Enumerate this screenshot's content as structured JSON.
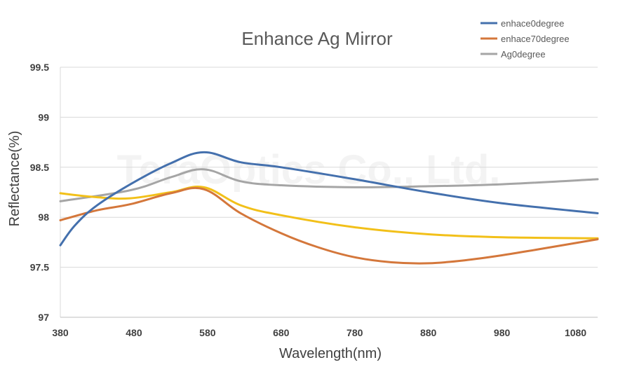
{
  "chart_data": {
    "type": "line",
    "title": "Enhance Ag Mirror",
    "xlabel": "Wavelength(nm)",
    "ylabel": "Reflectance(%)",
    "xlim": [
      380,
      1110
    ],
    "ylim": [
      97,
      99.5
    ],
    "x_ticks": [
      380,
      480,
      580,
      680,
      780,
      880,
      980,
      1080
    ],
    "y_ticks": [
      97,
      97.5,
      98,
      98.5,
      99,
      99.5
    ],
    "grid": true,
    "legend_position": "top-right",
    "watermark": "TeraOptics Co., Ltd.",
    "series": [
      {
        "name": "enhace0degree",
        "color": "#4470AD",
        "x": [
          380,
          400,
          430,
          480,
          530,
          575,
          625,
          680,
          780,
          880,
          980,
          1110
        ],
        "y": [
          97.72,
          97.92,
          98.12,
          98.35,
          98.54,
          98.65,
          98.55,
          98.5,
          98.38,
          98.25,
          98.14,
          98.04
        ]
      },
      {
        "name": "enhace70degree",
        "color": "#D4773B",
        "x": [
          380,
          430,
          475,
          530,
          575,
          625,
          680,
          730,
          780,
          830,
          880,
          930,
          980,
          1030,
          1110
        ],
        "y": [
          97.97,
          98.07,
          98.13,
          98.24,
          98.28,
          98.04,
          97.84,
          97.7,
          97.6,
          97.55,
          97.54,
          97.57,
          97.62,
          97.68,
          97.78
        ]
      },
      {
        "name": "Ag0degree",
        "color": "#A5A5A5",
        "x": [
          380,
          475,
          530,
          575,
          625,
          680,
          780,
          880,
          980,
          1110
        ],
        "y": [
          98.16,
          98.27,
          98.4,
          98.48,
          98.36,
          98.32,
          98.3,
          98.31,
          98.33,
          98.38
        ]
      },
      {
        "name": "",
        "color": "#F2C019",
        "x": [
          380,
          430,
          475,
          530,
          575,
          625,
          680,
          780,
          880,
          980,
          1110
        ],
        "y": [
          98.24,
          98.2,
          98.19,
          98.25,
          98.3,
          98.12,
          98.02,
          97.9,
          97.83,
          97.8,
          97.79
        ]
      }
    ]
  }
}
